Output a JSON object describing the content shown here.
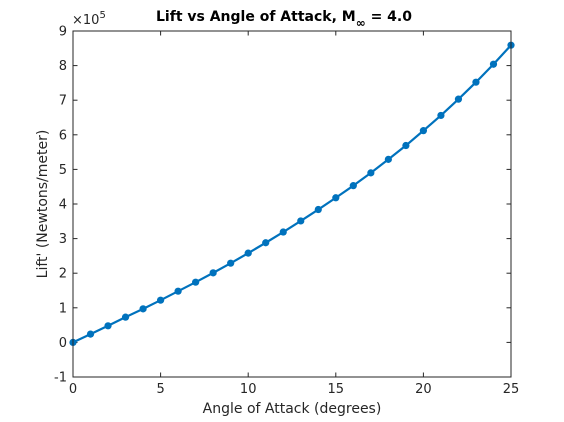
{
  "chart_data": {
    "type": "line",
    "title": "Lift vs Angle of Attack, M",
    "title_subscript": "∞",
    "title_suffix": " = 4.0",
    "xlabel": "Angle of Attack (degrees)",
    "ylabel": "Lift' (Newtons/meter)",
    "y_exponent_base": "×10",
    "y_exponent_power": "5",
    "xlim": [
      0,
      25
    ],
    "ylim": [
      -1,
      9
    ],
    "x_ticks": [
      0,
      5,
      10,
      15,
      20,
      25
    ],
    "y_ticks": [
      -1,
      0,
      1,
      2,
      3,
      4,
      5,
      6,
      7,
      8,
      9
    ],
    "grid": false,
    "line_color": "#0072BD",
    "series": [
      {
        "x": [
          0,
          1,
          2,
          3,
          4,
          5,
          6,
          7,
          8,
          9,
          10,
          11,
          12,
          13,
          14,
          15,
          16,
          17,
          18,
          19,
          20,
          21,
          22,
          23,
          24,
          25
        ],
        "y": [
          0.0,
          0.24,
          0.48,
          0.73,
          0.97,
          1.22,
          1.48,
          1.74,
          2.01,
          2.29,
          2.58,
          2.88,
          3.19,
          3.51,
          3.84,
          4.18,
          4.53,
          4.9,
          5.29,
          5.69,
          6.12,
          6.56,
          7.03,
          7.52,
          8.04,
          8.59
        ]
      }
    ]
  }
}
